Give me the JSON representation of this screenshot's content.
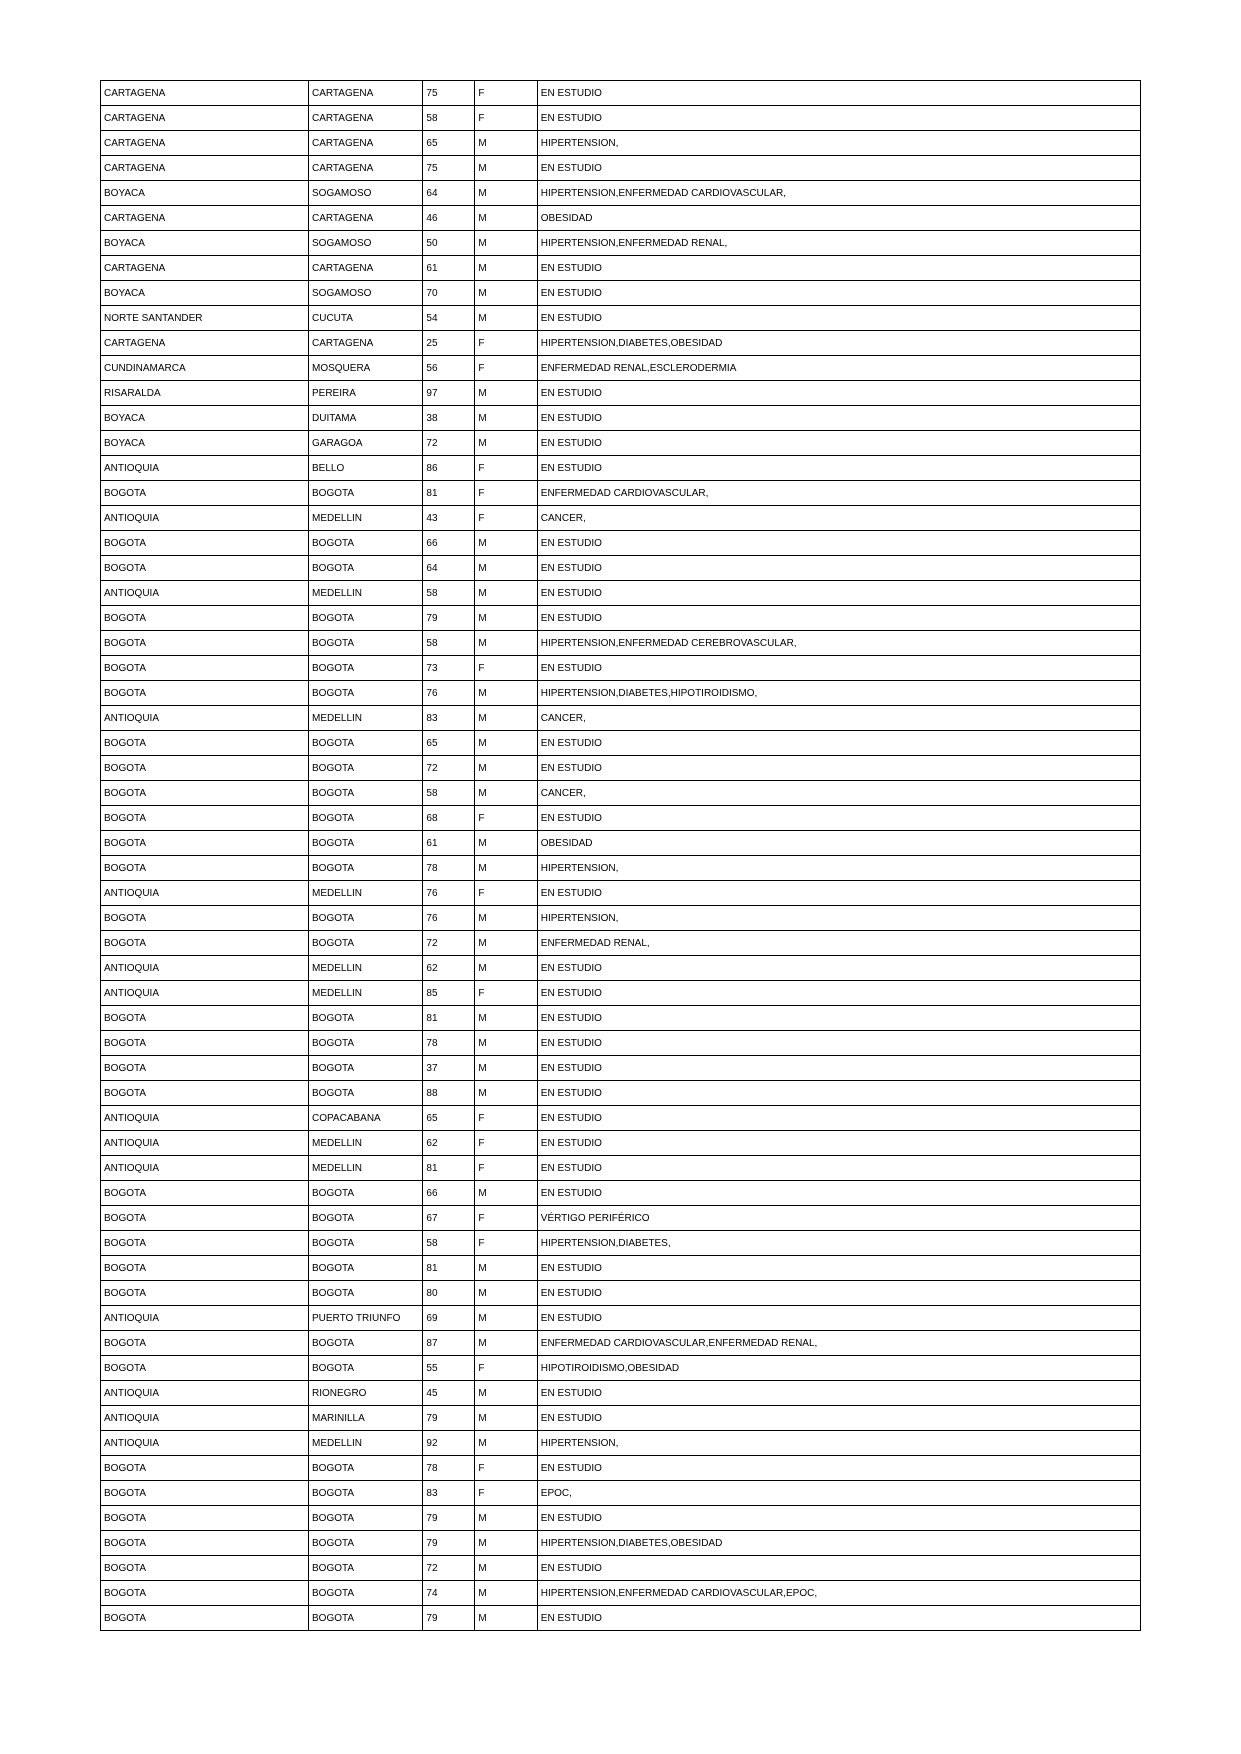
{
  "table": {
    "background_color": "#ffffff",
    "border_color": "#000000",
    "font_size": 10,
    "text_color": "#000000",
    "column_widths_pct": [
      20,
      11,
      5,
      6,
      58
    ],
    "rows": [
      [
        "CARTAGENA",
        "CARTAGENA",
        "75",
        "F",
        "EN ESTUDIO"
      ],
      [
        "CARTAGENA",
        "CARTAGENA",
        "58",
        "F",
        "EN ESTUDIO"
      ],
      [
        "CARTAGENA",
        "CARTAGENA",
        "65",
        "M",
        "HIPERTENSION,"
      ],
      [
        "CARTAGENA",
        "CARTAGENA",
        "75",
        "M",
        "EN ESTUDIO"
      ],
      [
        "BOYACA",
        "SOGAMOSO",
        "64",
        "M",
        "HIPERTENSION,ENFERMEDAD CARDIOVASCULAR,"
      ],
      [
        "CARTAGENA",
        "CARTAGENA",
        "46",
        "M",
        "OBESIDAD"
      ],
      [
        "BOYACA",
        "SOGAMOSO",
        "50",
        "M",
        "HIPERTENSION,ENFERMEDAD RENAL,"
      ],
      [
        "CARTAGENA",
        "CARTAGENA",
        "61",
        "M",
        "EN ESTUDIO"
      ],
      [
        "BOYACA",
        "SOGAMOSO",
        "70",
        "M",
        "EN ESTUDIO"
      ],
      [
        "NORTE SANTANDER",
        "CUCUTA",
        "54",
        "M",
        "EN ESTUDIO"
      ],
      [
        "CARTAGENA",
        "CARTAGENA",
        "25",
        "F",
        "HIPERTENSION,DIABETES,OBESIDAD"
      ],
      [
        "CUNDINAMARCA",
        "MOSQUERA",
        "56",
        "F",
        "ENFERMEDAD RENAL,ESCLERODERMIA"
      ],
      [
        "RISARALDA",
        "PEREIRA",
        "97",
        "M",
        "EN ESTUDIO"
      ],
      [
        "BOYACA",
        "DUITAMA",
        "38",
        "M",
        "EN ESTUDIO"
      ],
      [
        "BOYACA",
        "GARAGOA",
        "72",
        "M",
        "EN ESTUDIO"
      ],
      [
        "ANTIOQUIA",
        "BELLO",
        "86",
        "F",
        "EN ESTUDIO"
      ],
      [
        "BOGOTA",
        "BOGOTA",
        "81",
        "F",
        "ENFERMEDAD CARDIOVASCULAR,"
      ],
      [
        "ANTIOQUIA",
        "MEDELLIN",
        "43",
        "F",
        "CANCER,"
      ],
      [
        "BOGOTA",
        "BOGOTA",
        "66",
        "M",
        "EN ESTUDIO"
      ],
      [
        "BOGOTA",
        "BOGOTA",
        "64",
        "M",
        "EN ESTUDIO"
      ],
      [
        "ANTIOQUIA",
        "MEDELLIN",
        "58",
        "M",
        "EN ESTUDIO"
      ],
      [
        "BOGOTA",
        "BOGOTA",
        "79",
        "M",
        "EN ESTUDIO"
      ],
      [
        "BOGOTA",
        "BOGOTA",
        "58",
        "M",
        "HIPERTENSION,ENFERMEDAD CEREBROVASCULAR,"
      ],
      [
        "BOGOTA",
        "BOGOTA",
        "73",
        "F",
        "EN ESTUDIO"
      ],
      [
        "BOGOTA",
        "BOGOTA",
        "76",
        "M",
        "HIPERTENSION,DIABETES,HIPOTIROIDISMO,"
      ],
      [
        "ANTIOQUIA",
        "MEDELLIN",
        "83",
        "M",
        "CANCER,"
      ],
      [
        "BOGOTA",
        "BOGOTA",
        "65",
        "M",
        "EN ESTUDIO"
      ],
      [
        "BOGOTA",
        "BOGOTA",
        "72",
        "M",
        "EN ESTUDIO"
      ],
      [
        "BOGOTA",
        "BOGOTA",
        "58",
        "M",
        "CANCER,"
      ],
      [
        "BOGOTA",
        "BOGOTA",
        "68",
        "F",
        "EN ESTUDIO"
      ],
      [
        "BOGOTA",
        "BOGOTA",
        "61",
        "M",
        "OBESIDAD"
      ],
      [
        "BOGOTA",
        "BOGOTA",
        "78",
        "M",
        "HIPERTENSION,"
      ],
      [
        "ANTIOQUIA",
        "MEDELLIN",
        "76",
        "F",
        "EN ESTUDIO"
      ],
      [
        "BOGOTA",
        "BOGOTA",
        "76",
        "M",
        "HIPERTENSION,"
      ],
      [
        "BOGOTA",
        "BOGOTA",
        "72",
        "M",
        "ENFERMEDAD RENAL,"
      ],
      [
        "ANTIOQUIA",
        "MEDELLIN",
        "62",
        "M",
        "EN ESTUDIO"
      ],
      [
        "ANTIOQUIA",
        "MEDELLIN",
        "85",
        "F",
        "EN ESTUDIO"
      ],
      [
        "BOGOTA",
        "BOGOTA",
        "81",
        "M",
        "EN ESTUDIO"
      ],
      [
        "BOGOTA",
        "BOGOTA",
        "78",
        "M",
        "EN ESTUDIO"
      ],
      [
        "BOGOTA",
        "BOGOTA",
        "37",
        "M",
        "EN ESTUDIO"
      ],
      [
        "BOGOTA",
        "BOGOTA",
        "88",
        "M",
        "EN ESTUDIO"
      ],
      [
        "ANTIOQUIA",
        "COPACABANA",
        "65",
        "F",
        "EN ESTUDIO"
      ],
      [
        "ANTIOQUIA",
        "MEDELLIN",
        "62",
        "F",
        "EN ESTUDIO"
      ],
      [
        "ANTIOQUIA",
        "MEDELLIN",
        "81",
        "F",
        "EN ESTUDIO"
      ],
      [
        "BOGOTA",
        "BOGOTA",
        "66",
        "M",
        "EN ESTUDIO"
      ],
      [
        "BOGOTA",
        "BOGOTA",
        "67",
        "F",
        "VÉRTIGO PERIFÉRICO"
      ],
      [
        "BOGOTA",
        "BOGOTA",
        "58",
        "F",
        "HIPERTENSION,DIABETES,"
      ],
      [
        "BOGOTA",
        "BOGOTA",
        "81",
        "M",
        "EN ESTUDIO"
      ],
      [
        "BOGOTA",
        "BOGOTA",
        "80",
        "M",
        "EN ESTUDIO"
      ],
      [
        "ANTIOQUIA",
        "PUERTO TRIUNFO",
        "69",
        "M",
        "EN ESTUDIO"
      ],
      [
        "BOGOTA",
        "BOGOTA",
        "87",
        "M",
        "ENFERMEDAD CARDIOVASCULAR,ENFERMEDAD RENAL,"
      ],
      [
        "BOGOTA",
        "BOGOTA",
        "55",
        "F",
        "HIPOTIROIDISMO,OBESIDAD"
      ],
      [
        "ANTIOQUIA",
        "RIONEGRO",
        "45",
        "M",
        "EN ESTUDIO"
      ],
      [
        "ANTIOQUIA",
        "MARINILLA",
        "79",
        "M",
        "EN ESTUDIO"
      ],
      [
        "ANTIOQUIA",
        "MEDELLIN",
        "92",
        "M",
        "HIPERTENSION,"
      ],
      [
        "BOGOTA",
        "BOGOTA",
        "78",
        "F",
        "EN ESTUDIO"
      ],
      [
        "BOGOTA",
        "BOGOTA",
        "83",
        "F",
        "EPOC,"
      ],
      [
        "BOGOTA",
        "BOGOTA",
        "79",
        "M",
        "EN ESTUDIO"
      ],
      [
        "BOGOTA",
        "BOGOTA",
        "79",
        "M",
        "HIPERTENSION,DIABETES,OBESIDAD"
      ],
      [
        "BOGOTA",
        "BOGOTA",
        "72",
        "M",
        "EN ESTUDIO"
      ],
      [
        "BOGOTA",
        "BOGOTA",
        "74",
        "M",
        "HIPERTENSION,ENFERMEDAD CARDIOVASCULAR,EPOC,"
      ],
      [
        "BOGOTA",
        "BOGOTA",
        "79",
        "M",
        "EN ESTUDIO"
      ]
    ]
  }
}
